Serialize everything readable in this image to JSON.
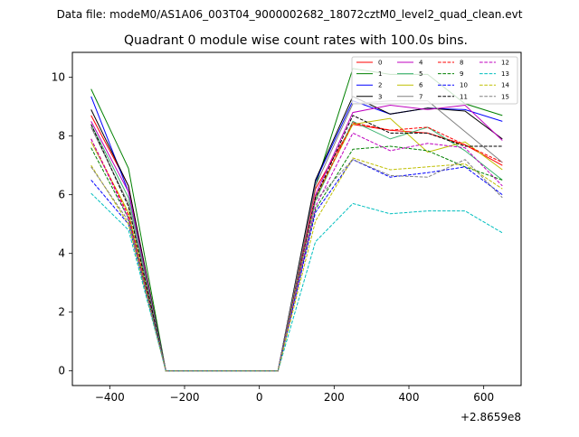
{
  "chart_data": {
    "type": "line",
    "suptitle": "Data file: modeM0/AS1A06_003T04_9000002682_18072cztM0_level2_quad_clean.evt",
    "title": "Quadrant 0 module wise count rates with 100.0s bins.",
    "xlabel": "",
    "ylabel": "",
    "x_offset_label": "+2.8659e8",
    "xlim": [
      -500,
      700
    ],
    "ylim": [
      -0.5,
      10.85
    ],
    "xticks": [
      -400,
      -200,
      0,
      200,
      400,
      600
    ],
    "yticks": [
      0,
      2,
      4,
      6,
      8,
      10
    ],
    "xtick_labels": [
      "−400",
      "−200",
      "0",
      "200",
      "400",
      "600"
    ],
    "ytick_labels": [
      "0",
      "2",
      "4",
      "6",
      "8",
      "10"
    ],
    "grid": false,
    "legend_position": "upper right",
    "legend_columns": 4,
    "x": [
      -450,
      -350,
      -250,
      -150,
      -50,
      50,
      150,
      250,
      350,
      450,
      550,
      650
    ],
    "series": [
      {
        "name": "0",
        "color": "#ff0000",
        "dash": "solid",
        "values": [
          8.7,
          6.3,
          0,
          0,
          0,
          0,
          6.2,
          8.4,
          8.2,
          8.1,
          7.7,
          7.0
        ]
      },
      {
        "name": "1",
        "color": "#008000",
        "dash": "solid",
        "values": [
          9.6,
          6.9,
          0,
          0,
          0,
          0,
          6.3,
          10.3,
          10.1,
          10.1,
          9.1,
          8.7
        ]
      },
      {
        "name": "2",
        "color": "#0000ff",
        "dash": "solid",
        "values": [
          9.35,
          6.1,
          0,
          0,
          0,
          0,
          6.45,
          9.2,
          8.75,
          8.95,
          8.9,
          8.5
        ]
      },
      {
        "name": "3",
        "color": "#000000",
        "dash": "solid",
        "values": [
          8.9,
          6.3,
          0,
          0,
          0,
          0,
          6.5,
          9.35,
          8.75,
          8.95,
          8.85,
          7.9
        ]
      },
      {
        "name": "4",
        "color": "#bf00bf",
        "dash": "solid",
        "values": [
          8.5,
          6.1,
          0,
          0,
          0,
          0,
          6.0,
          8.8,
          9.05,
          8.9,
          9.05,
          7.85
        ]
      },
      {
        "name": "5",
        "color": "#3cb371",
        "dash": "solid",
        "values": [
          8.4,
          5.9,
          0,
          0,
          0,
          0,
          5.8,
          8.5,
          7.9,
          8.3,
          7.5,
          6.5
        ]
      },
      {
        "name": "6",
        "color": "#bfbf00",
        "dash": "solid",
        "values": [
          7.8,
          5.4,
          0,
          0,
          0,
          0,
          5.9,
          8.4,
          8.6,
          7.45,
          7.8,
          6.85
        ]
      },
      {
        "name": "7",
        "color": "#808080",
        "dash": "solid",
        "values": [
          8.3,
          5.7,
          0,
          0,
          0,
          0,
          6.3,
          9.1,
          9.2,
          9.2,
          8.15,
          7.1
        ]
      },
      {
        "name": "8",
        "color": "#ff0000",
        "dash": "dashed",
        "values": [
          7.9,
          5.3,
          0,
          0,
          0,
          0,
          5.9,
          8.45,
          8.2,
          8.3,
          7.7,
          7.1
        ]
      },
      {
        "name": "9",
        "color": "#008000",
        "dash": "dashed",
        "values": [
          7.6,
          5.2,
          0,
          0,
          0,
          0,
          5.5,
          7.55,
          7.65,
          7.5,
          6.95,
          6.5
        ]
      },
      {
        "name": "10",
        "color": "#0000ff",
        "dash": "dashed",
        "values": [
          6.5,
          5.0,
          0,
          0,
          0,
          0,
          5.4,
          7.2,
          6.6,
          6.75,
          6.95,
          6.0
        ]
      },
      {
        "name": "11",
        "color": "#000000",
        "dash": "dashed",
        "values": [
          8.4,
          5.6,
          0,
          0,
          0,
          0,
          5.9,
          8.7,
          8.1,
          8.1,
          7.65,
          7.65
        ]
      },
      {
        "name": "12",
        "color": "#bf00bf",
        "dash": "dashed",
        "values": [
          7.9,
          5.2,
          0,
          0,
          0,
          0,
          5.6,
          8.1,
          7.5,
          7.75,
          7.6,
          6.3
        ]
      },
      {
        "name": "13",
        "color": "#00bfbf",
        "dash": "dashed",
        "values": [
          6.05,
          4.8,
          0,
          0,
          0,
          0,
          4.4,
          5.7,
          5.35,
          5.45,
          5.45,
          4.7
        ]
      },
      {
        "name": "14",
        "color": "#bfbf00",
        "dash": "dashed",
        "values": [
          7.0,
          5.0,
          0,
          0,
          0,
          0,
          5.1,
          7.25,
          6.85,
          6.95,
          7.05,
          6.2
        ]
      },
      {
        "name": "15",
        "color": "#808080",
        "dash": "dashed",
        "values": [
          6.95,
          5.1,
          0,
          0,
          0,
          0,
          5.8,
          7.2,
          6.65,
          6.6,
          7.2,
          5.9
        ]
      }
    ]
  }
}
